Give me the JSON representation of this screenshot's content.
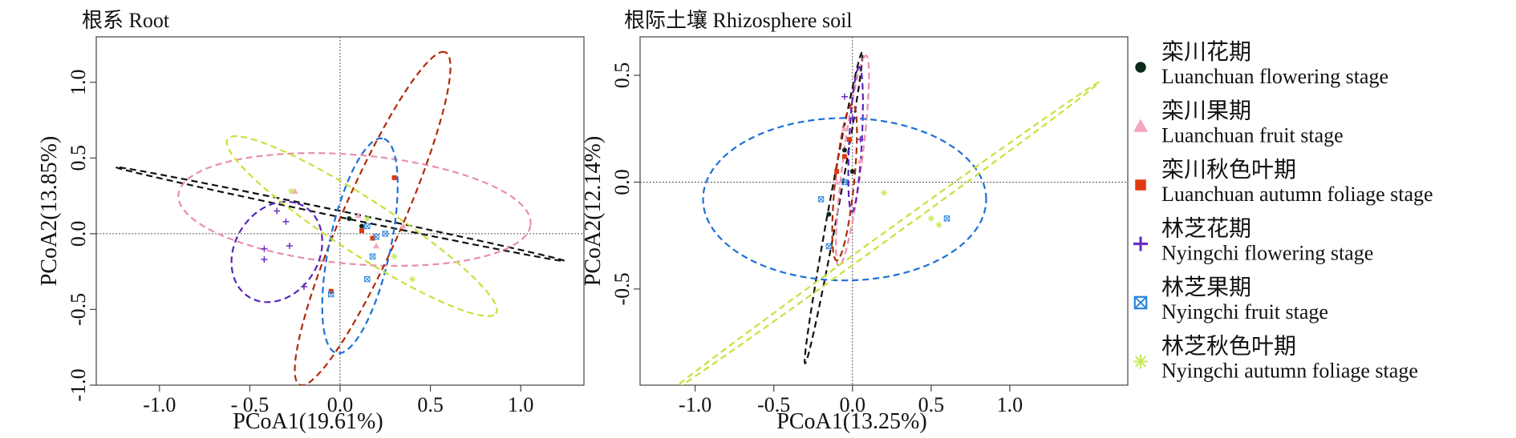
{
  "chart_data": [
    {
      "type": "scatter",
      "title": "根系 Root",
      "xlabel": "PCoA1(19.61%)",
      "ylabel": "PCoA2(13.85%)",
      "xlim": [
        -1.35,
        1.35
      ],
      "ylim": [
        -1.0,
        1.3
      ],
      "xticks": [
        -1.0,
        -0.5,
        0.0,
        0.5,
        1.0
      ],
      "xtick_labels": [
        "-1.0",
        "- 0.5",
        "0.0",
        "0.5",
        "1.0"
      ],
      "yticks": [
        -1.0,
        -0.5,
        0.0,
        0.5,
        1.0
      ],
      "ytick_labels": [
        "-1.0",
        "-0.5",
        "0.0",
        "0.5",
        "1.0"
      ],
      "reference_lines": {
        "x": 0,
        "y": 0
      },
      "grid": false,
      "series": [
        {
          "key": "lc_flower",
          "points": [
            [
              0.05,
              0.1
            ],
            [
              0.12,
              0.05
            ],
            [
              0.18,
              -0.03
            ]
          ],
          "ellipse": {
            "cx": 0.0,
            "cy": 0.13,
            "rx": 1.28,
            "ry": 0.02,
            "angle": -14
          }
        },
        {
          "key": "lc_fruit",
          "points": [
            [
              -0.25,
              0.28
            ],
            [
              0.1,
              0.12
            ],
            [
              0.2,
              -0.08
            ],
            [
              0.35,
              0.05
            ]
          ],
          "ellipse": {
            "cx": 0.08,
            "cy": 0.16,
            "rx": 0.98,
            "ry": 0.36,
            "angle": -6
          }
        },
        {
          "key": "lc_autumn",
          "points": [
            [
              0.3,
              0.37
            ],
            [
              0.18,
              -0.03
            ],
            [
              -0.05,
              -0.38
            ],
            [
              0.12,
              0.02
            ]
          ],
          "ellipse": {
            "cx": 0.18,
            "cy": 0.1,
            "rx": 1.17,
            "ry": 0.17,
            "angle": 70
          }
        },
        {
          "key": "ny_flower",
          "points": [
            [
              -0.42,
              -0.1
            ],
            [
              -0.42,
              -0.17
            ],
            [
              -0.3,
              0.08
            ],
            [
              -0.35,
              0.15
            ],
            [
              -0.2,
              -0.35
            ],
            [
              -0.28,
              -0.08
            ]
          ],
          "ellipse": {
            "cx": -0.35,
            "cy": -0.12,
            "rx": 0.34,
            "ry": 0.24,
            "angle": 72
          }
        },
        {
          "key": "ny_fruit",
          "points": [
            [
              0.15,
              0.05
            ],
            [
              0.18,
              -0.15
            ],
            [
              0.15,
              -0.3
            ],
            [
              0.2,
              -0.02
            ],
            [
              0.25,
              0.0
            ],
            [
              -0.05,
              -0.4
            ]
          ],
          "ellipse": {
            "cx": 0.11,
            "cy": -0.08,
            "rx": 0.72,
            "ry": 0.17,
            "angle": 80
          }
        },
        {
          "key": "ny_autumn",
          "points": [
            [
              -0.27,
              0.28
            ],
            [
              0.15,
              0.1
            ],
            [
              0.3,
              -0.15
            ],
            [
              0.4,
              -0.3
            ]
          ],
          "ellipse": {
            "cx": 0.12,
            "cy": 0.05,
            "rx": 0.94,
            "ry": 0.17,
            "angle": -38
          }
        }
      ]
    },
    {
      "type": "scatter",
      "title": "根际土壤 Rhizosphere soil",
      "xlabel": "PCoA1(13.25%)",
      "ylabel": "PCoA2(12.14%)",
      "xlim": [
        -1.35,
        1.75
      ],
      "ylim": [
        -0.95,
        0.68
      ],
      "xticks": [
        -1.0,
        -0.5,
        0.0,
        0.5,
        1.0
      ],
      "xtick_labels": [
        "-1.0",
        "-0.5",
        "0.0",
        "0.5",
        "1.0"
      ],
      "yticks": [
        -0.5,
        0.0,
        0.5
      ],
      "ytick_labels": [
        "-0.5",
        "0.0",
        "0.5"
      ],
      "reference_lines": {
        "x": 0,
        "y": 0
      },
      "grid": false,
      "series": [
        {
          "key": "lc_flower",
          "points": [
            [
              -0.05,
              0.15
            ],
            [
              0.0,
              0.05
            ],
            [
              -0.15,
              -0.15
            ]
          ],
          "ellipse": {
            "cx": -0.12,
            "cy": -0.12,
            "rx": 0.75,
            "ry": 0.03,
            "angle": 76
          }
        },
        {
          "key": "lc_fruit",
          "points": [
            [
              -0.05,
              0.25
            ],
            [
              0.05,
              0.1
            ],
            [
              -0.1,
              0.0
            ]
          ],
          "ellipse": {
            "cx": 0.0,
            "cy": 0.1,
            "rx": 0.5,
            "ry": 0.06,
            "angle": 80
          }
        },
        {
          "key": "lc_autumn",
          "points": [
            [
              -0.05,
              0.12
            ],
            [
              -0.1,
              0.05
            ],
            [
              -0.02,
              0.2
            ]
          ],
          "ellipse": {
            "cx": -0.05,
            "cy": 0.0,
            "rx": 0.37,
            "ry": 0.06,
            "angle": 82
          }
        },
        {
          "key": "ny_flower",
          "points": [
            [
              0.0,
              0.3
            ],
            [
              0.05,
              0.2
            ],
            [
              -0.05,
              0.4
            ]
          ],
          "ellipse": {
            "cx": 0.02,
            "cy": 0.2,
            "rx": 0.34,
            "ry": 0.04,
            "angle": 86
          }
        },
        {
          "key": "ny_fruit",
          "points": [
            [
              -0.2,
              -0.08
            ],
            [
              -0.15,
              -0.3
            ],
            [
              -0.05,
              0.0
            ],
            [
              0.6,
              -0.17
            ]
          ],
          "ellipse": {
            "cx": -0.05,
            "cy": -0.08,
            "rx": 0.9,
            "ry": 0.38,
            "angle": 0
          }
        },
        {
          "key": "ny_autumn",
          "points": [
            [
              0.5,
              -0.17
            ],
            [
              0.55,
              -0.2
            ],
            [
              0.2,
              -0.05
            ]
          ],
          "ellipse": {
            "cx": 0.2,
            "cy": -0.26,
            "rx": 1.55,
            "ry": 0.02,
            "angle": 28
          }
        }
      ]
    }
  ],
  "legend": {
    "placement": "right",
    "entries": [
      {
        "key": "lc_flower",
        "label_cn": "栾川花期",
        "label_en": "Luanchuan  flowering stage",
        "color": "#0b2a1c",
        "marker": "circle"
      },
      {
        "key": "lc_fruit",
        "label_cn": "栾川果期",
        "label_en": "Luanchuan  fruit stage",
        "color": "#f2a7bf",
        "marker": "triangle"
      },
      {
        "key": "lc_autumn",
        "label_cn": "栾川秋色叶期",
        "label_en": "Luanchuan  autumn foliage stage",
        "color": "#e03a12",
        "marker": "square"
      },
      {
        "key": "ny_flower",
        "label_cn": "林芝花期",
        "label_en": "Nyingchi flowering stage",
        "color": "#6a2fc0",
        "marker": "plus"
      },
      {
        "key": "ny_fruit",
        "label_cn": "林芝果期",
        "label_en": "Nyingchi  fruit stage",
        "color": "#2a86df",
        "marker": "boxx"
      },
      {
        "key": "ny_autumn",
        "label_cn": "林芝秋色叶期",
        "label_en": "Nyingchi   autumn foliage stage",
        "color": "#c6ea5a",
        "marker": "asterisk"
      }
    ]
  },
  "ellipse_colors": {
    "lc_flower": "#111111",
    "lc_fruit": "#e88ea9",
    "lc_autumn": "#b02a0a",
    "ny_flower": "#5a24b8",
    "ny_fruit": "#1f6fd6",
    "ny_autumn": "#c9e03a"
  }
}
